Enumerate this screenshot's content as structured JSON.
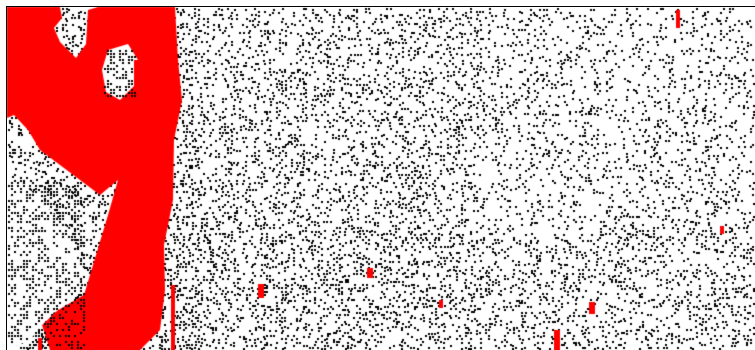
{
  "simulation": {
    "background_color": "#ffffff",
    "particle_color": "#000000",
    "cluster_color": "#ff0000",
    "border_color": "#000000",
    "particle_density": {
      "left_region": 0.36,
      "middle_region": 0.3,
      "right_region": 0.22,
      "lower_band_boost": 0.06
    },
    "cluster_shapes": [
      "large-blob-left",
      "thin-streak-bottom-left",
      "small-speck"
    ]
  }
}
